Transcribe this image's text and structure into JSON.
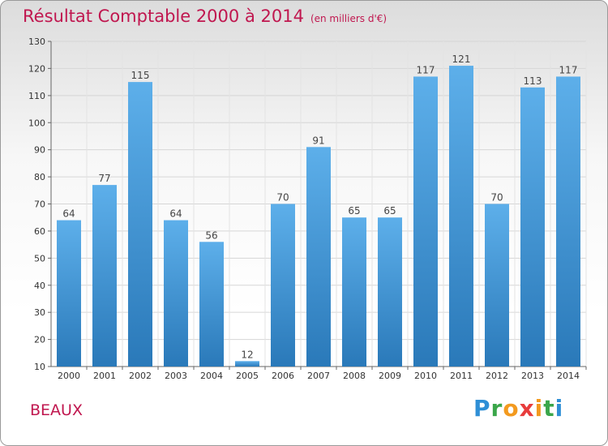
{
  "header": {
    "title": "Résultat Comptable 2000 à 2014",
    "unit": "(en milliers d'€)"
  },
  "footer": {
    "commune": "BEAUX",
    "logo": "Proxiti"
  },
  "chart_data": {
    "type": "bar",
    "title": "Résultat Comptable 2000 à 2014",
    "subtitle": "(en milliers d'€)",
    "xlabel": "",
    "ylabel": "",
    "categories": [
      "2000",
      "2001",
      "2002",
      "2003",
      "2004",
      "2005",
      "2006",
      "2007",
      "2008",
      "2009",
      "2010",
      "2011",
      "2012",
      "2013",
      "2014"
    ],
    "values": [
      64,
      77,
      115,
      64,
      56,
      12,
      70,
      91,
      65,
      65,
      117,
      121,
      70,
      113,
      117
    ],
    "ylim": [
      10,
      130
    ],
    "yticks": [
      10,
      20,
      30,
      40,
      50,
      60,
      70,
      80,
      90,
      100,
      110,
      120,
      130
    ],
    "grid": true,
    "colors": {
      "bar_top": "#5dafea",
      "bar_bottom": "#2a79b9",
      "title": "#c0174f"
    }
  }
}
